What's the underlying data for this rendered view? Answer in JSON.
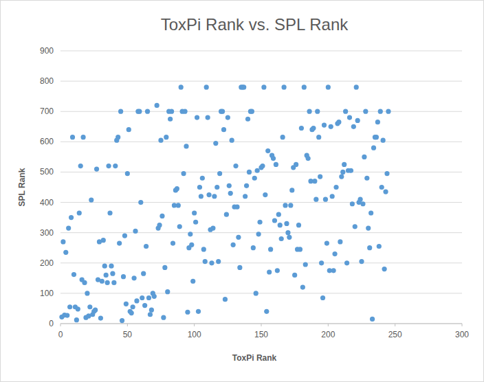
{
  "chart_data": {
    "type": "scatter",
    "title": "ToxPi Rank vs. SPL Rank",
    "x_label": "ToxPi Rank",
    "y_label": "SPL Rank",
    "color": "#5b9bd5",
    "marker": "circle",
    "grid": true,
    "xlim": [
      0,
      300
    ],
    "xticks": [
      0,
      50,
      100,
      150,
      200,
      250,
      300
    ],
    "ylim": [
      0,
      900
    ],
    "yticks": [
      0,
      100,
      200,
      300,
      400,
      500,
      600,
      700,
      800,
      900
    ],
    "x": [
      1,
      2,
      3,
      4,
      5,
      6,
      7,
      8,
      9,
      10,
      11,
      12,
      13,
      14,
      15,
      16,
      17,
      18,
      19,
      20,
      21,
      22,
      23,
      24,
      25,
      26,
      27,
      28,
      29,
      30,
      31,
      32,
      33,
      34,
      35,
      36,
      37,
      38,
      39,
      40,
      41,
      42,
      43,
      44,
      45,
      46,
      47,
      48,
      49,
      50,
      51,
      52,
      53,
      54,
      55,
      56,
      57,
      58,
      59,
      60,
      61,
      62,
      63,
      64,
      65,
      66,
      67,
      68,
      69,
      70,
      72,
      73,
      74,
      75,
      76,
      77,
      78,
      79,
      80,
      81,
      82,
      83,
      84,
      85,
      86,
      87,
      88,
      89,
      90,
      91,
      92,
      93,
      94,
      95,
      96,
      97,
      98,
      99,
      100,
      101,
      102,
      103,
      104,
      105,
      106,
      107,
      108,
      109,
      110,
      111,
      112,
      113,
      114,
      115,
      116,
      117,
      118,
      119,
      120,
      121,
      122,
      123,
      124,
      125,
      126,
      127,
      128,
      129,
      130,
      131,
      132,
      133,
      134,
      135,
      136,
      137,
      138,
      139,
      140,
      141,
      142,
      143,
      144,
      145,
      146,
      147,
      148,
      149,
      150,
      151,
      152,
      153,
      154,
      155,
      156,
      157,
      158,
      159,
      160,
      161,
      162,
      163,
      164,
      165,
      166,
      167,
      168,
      169,
      170,
      171,
      172,
      173,
      174,
      175,
      176,
      177,
      178,
      179,
      180,
      181,
      182,
      183,
      184,
      185,
      186,
      187,
      188,
      189,
      190,
      191,
      192,
      193,
      194,
      195,
      196,
      197,
      198,
      199,
      200,
      201,
      202,
      203,
      204,
      205,
      206,
      207,
      208,
      209,
      210,
      211,
      212,
      213,
      214,
      215,
      216,
      217,
      218,
      219,
      220,
      221,
      222,
      223,
      224,
      225,
      226,
      227,
      228,
      229,
      230,
      231,
      232,
      233,
      234,
      235,
      236,
      237,
      238,
      239,
      240,
      241,
      242,
      243,
      244,
      245
    ],
    "y": [
      22,
      270,
      28,
      235,
      27,
      315,
      55,
      350,
      615,
      162,
      55,
      12,
      48,
      365,
      520,
      145,
      615,
      135,
      20,
      100,
      25,
      55,
      408,
      30,
      40,
      45,
      510,
      145,
      270,
      18,
      140,
      275,
      190,
      160,
      135,
      520,
      365,
      190,
      165,
      135,
      520,
      605,
      615,
      265,
      700,
      10,
      155,
      290,
      65,
      495,
      640,
      40,
      35,
      55,
      150,
      305,
      75,
      700,
      700,
      400,
      85,
      165,
      60,
      255,
      700,
      85,
      30,
      45,
      100,
      90,
      720,
      315,
      325,
      605,
      355,
      20,
      185,
      615,
      105,
      700,
      675,
      700,
      265,
      390,
      440,
      445,
      390,
      320,
      780,
      700,
      495,
      700,
      585,
      38,
      250,
      295,
      260,
      140,
      365,
      335,
      680,
      40,
      450,
      420,
      480,
      245,
      205,
      780,
      680,
      425,
      310,
      200,
      315,
      420,
      595,
      450,
      205,
      495,
      700,
      700,
      640,
      80,
      360,
      680,
      455,
      430,
      605,
      260,
      385,
      520,
      385,
      285,
      185,
      780,
      780,
      780,
      420,
      455,
      675,
      500,
      700,
      700,
      250,
      480,
      100,
      505,
      295,
      335,
      515,
      520,
      780,
      425,
      40,
      570,
      170,
      245,
      555,
      545,
      340,
      525,
      175,
      360,
      325,
      280,
      615,
      780,
      390,
      330,
      300,
      285,
      390,
      440,
      515,
      160,
      525,
      245,
      325,
      245,
      645,
      120,
      780,
      195,
      555,
      545,
      700,
      470,
      640,
      645,
      470,
      410,
      700,
      615,
      485,
      200,
      85,
      655,
      410,
      265,
      780,
      175,
      650,
      420,
      175,
      230,
      450,
      660,
      665,
      270,
      485,
      500,
      525,
      700,
      200,
      505,
      680,
      505,
      395,
      650,
      320,
      780,
      670,
      400,
      410,
      205,
      395,
      550,
      700,
      480,
      315,
      250,
      365,
      15,
      580,
      615,
      615,
      665,
      255,
      700,
      450,
      605,
      180,
      435,
      495,
      700
    ]
  }
}
